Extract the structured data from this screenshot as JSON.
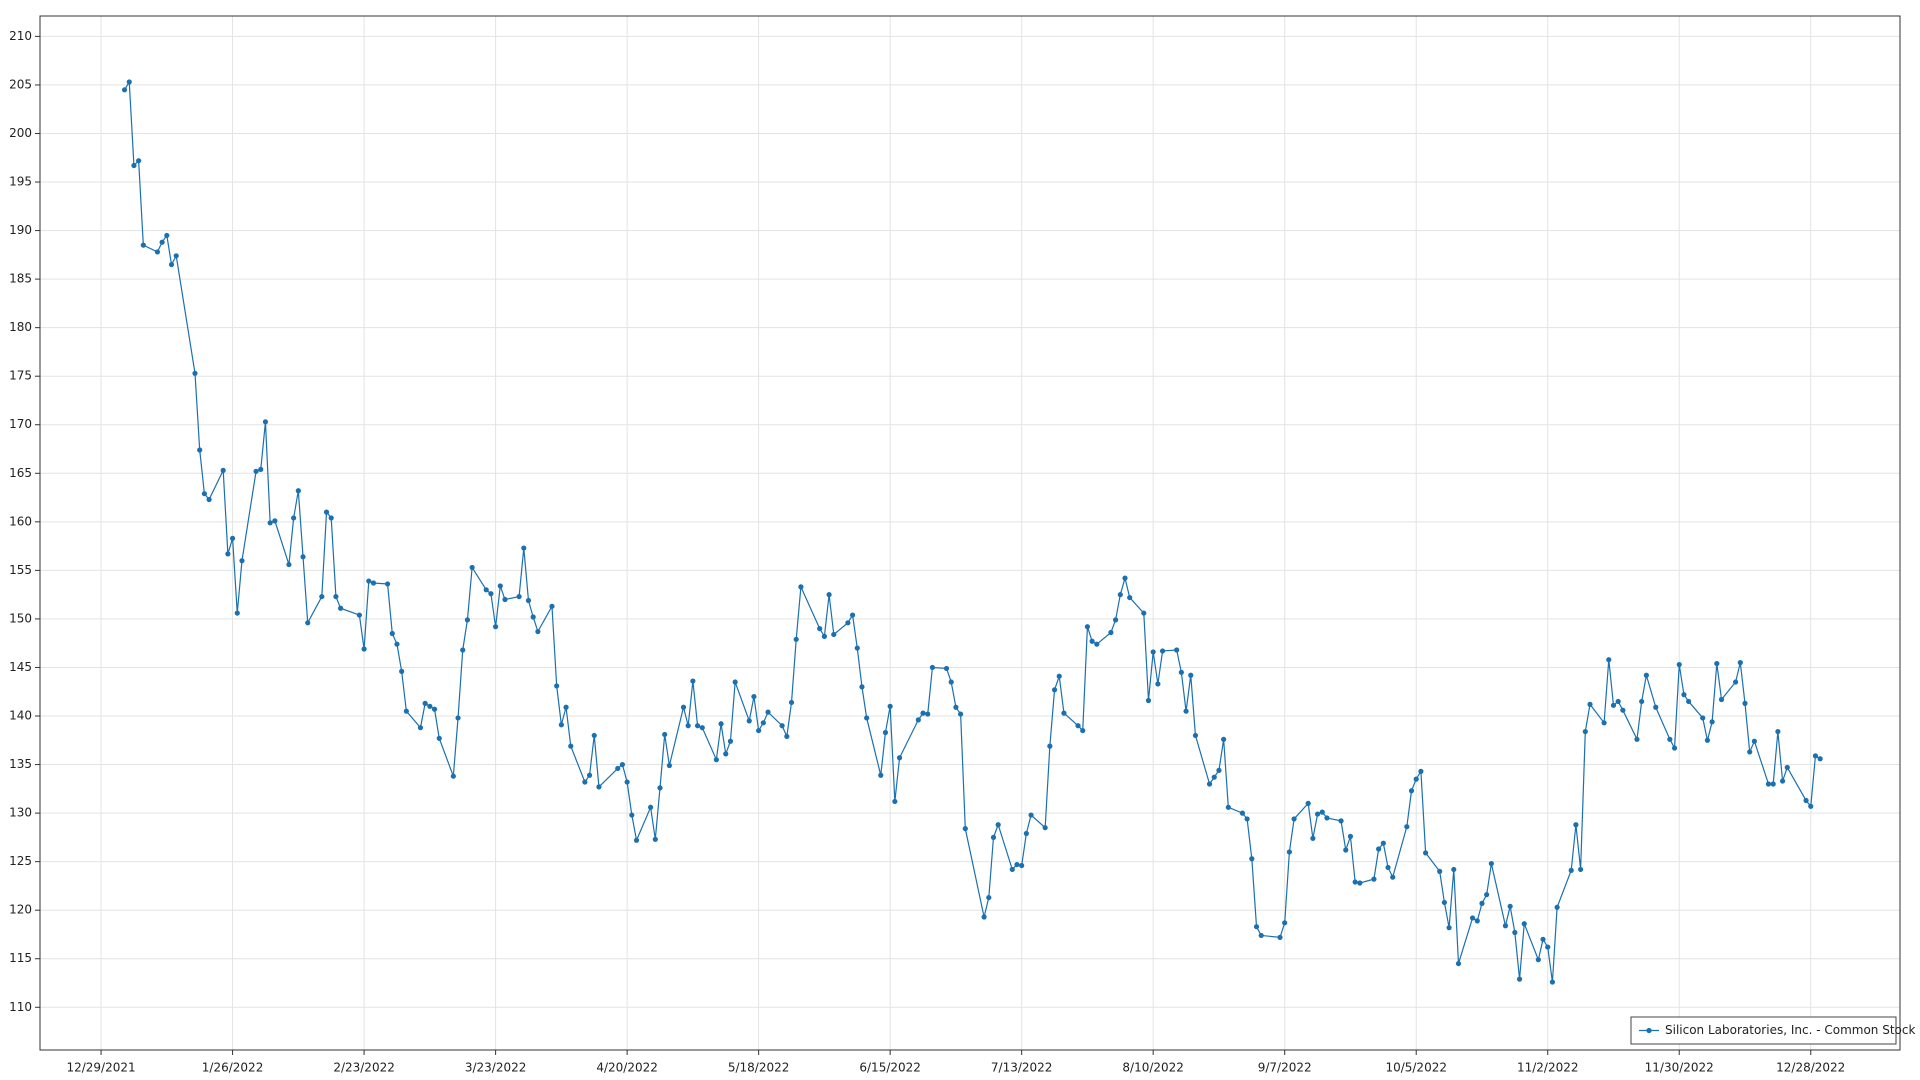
{
  "chart_data": {
    "type": "line",
    "x": [
      "1/3/2022",
      "1/4/2022",
      "1/5/2022",
      "1/6/2022",
      "1/7/2022",
      "1/10/2022",
      "1/11/2022",
      "1/12/2022",
      "1/13/2022",
      "1/14/2022",
      "1/18/2022",
      "1/19/2022",
      "1/20/2022",
      "1/21/2022",
      "1/24/2022",
      "1/25/2022",
      "1/26/2022",
      "1/27/2022",
      "1/28/2022",
      "1/31/2022",
      "2/1/2022",
      "2/2/2022",
      "2/3/2022",
      "2/4/2022",
      "2/7/2022",
      "2/8/2022",
      "2/9/2022",
      "2/10/2022",
      "2/11/2022",
      "2/14/2022",
      "2/15/2022",
      "2/16/2022",
      "2/17/2022",
      "2/18/2022",
      "2/22/2022",
      "2/23/2022",
      "2/24/2022",
      "2/25/2022",
      "2/28/2022",
      "3/1/2022",
      "3/2/2022",
      "3/3/2022",
      "3/4/2022",
      "3/7/2022",
      "3/8/2022",
      "3/9/2022",
      "3/10/2022",
      "3/11/2022",
      "3/14/2022",
      "3/15/2022",
      "3/16/2022",
      "3/17/2022",
      "3/18/2022",
      "3/21/2022",
      "3/22/2022",
      "3/23/2022",
      "3/24/2022",
      "3/25/2022",
      "3/28/2022",
      "3/29/2022",
      "3/30/2022",
      "3/31/2022",
      "4/1/2022",
      "4/4/2022",
      "4/5/2022",
      "4/6/2022",
      "4/7/2022",
      "4/8/2022",
      "4/11/2022",
      "4/12/2022",
      "4/13/2022",
      "4/14/2022",
      "4/18/2022",
      "4/19/2022",
      "4/20/2022",
      "4/21/2022",
      "4/22/2022",
      "4/25/2022",
      "4/26/2022",
      "4/27/2022",
      "4/28/2022",
      "4/29/2022",
      "5/2/2022",
      "5/3/2022",
      "5/4/2022",
      "5/5/2022",
      "5/6/2022",
      "5/9/2022",
      "5/10/2022",
      "5/11/2022",
      "5/12/2022",
      "5/13/2022",
      "5/16/2022",
      "5/17/2022",
      "5/18/2022",
      "5/19/2022",
      "5/20/2022",
      "5/23/2022",
      "5/24/2022",
      "5/25/2022",
      "5/26/2022",
      "5/27/2022",
      "5/31/2022",
      "6/1/2022",
      "6/2/2022",
      "6/3/2022",
      "6/6/2022",
      "6/7/2022",
      "6/8/2022",
      "6/9/2022",
      "6/10/2022",
      "6/13/2022",
      "6/14/2022",
      "6/15/2022",
      "6/16/2022",
      "6/17/2022",
      "6/21/2022",
      "6/22/2022",
      "6/23/2022",
      "6/24/2022",
      "6/27/2022",
      "6/28/2022",
      "6/29/2022",
      "6/30/2022",
      "7/1/2022",
      "7/5/2022",
      "7/6/2022",
      "7/7/2022",
      "7/8/2022",
      "7/11/2022",
      "7/12/2022",
      "7/13/2022",
      "7/14/2022",
      "7/15/2022",
      "7/18/2022",
      "7/19/2022",
      "7/20/2022",
      "7/21/2022",
      "7/22/2022",
      "7/25/2022",
      "7/26/2022",
      "7/27/2022",
      "7/28/2022",
      "7/29/2022",
      "8/1/2022",
      "8/2/2022",
      "8/3/2022",
      "8/4/2022",
      "8/5/2022",
      "8/8/2022",
      "8/9/2022",
      "8/10/2022",
      "8/11/2022",
      "8/12/2022",
      "8/15/2022",
      "8/16/2022",
      "8/17/2022",
      "8/18/2022",
      "8/19/2022",
      "8/22/2022",
      "8/23/2022",
      "8/24/2022",
      "8/25/2022",
      "8/26/2022",
      "8/29/2022",
      "8/30/2022",
      "8/31/2022",
      "9/1/2022",
      "9/2/2022",
      "9/6/2022",
      "9/7/2022",
      "9/8/2022",
      "9/9/2022",
      "9/12/2022",
      "9/13/2022",
      "9/14/2022",
      "9/15/2022",
      "9/16/2022",
      "9/19/2022",
      "9/20/2022",
      "9/21/2022",
      "9/22/2022",
      "9/23/2022",
      "9/26/2022",
      "9/27/2022",
      "9/28/2022",
      "9/29/2022",
      "9/30/2022",
      "10/3/2022",
      "10/4/2022",
      "10/5/2022",
      "10/6/2022",
      "10/7/2022",
      "10/10/2022",
      "10/11/2022",
      "10/12/2022",
      "10/13/2022",
      "10/14/2022",
      "10/17/2022",
      "10/18/2022",
      "10/19/2022",
      "10/20/2022",
      "10/21/2022",
      "10/24/2022",
      "10/25/2022",
      "10/26/2022",
      "10/27/2022",
      "10/28/2022",
      "10/31/2022",
      "11/1/2022",
      "11/2/2022",
      "11/3/2022",
      "11/4/2022",
      "11/7/2022",
      "11/8/2022",
      "11/9/2022",
      "11/10/2022",
      "11/11/2022",
      "11/14/2022",
      "11/15/2022",
      "11/16/2022",
      "11/17/2022",
      "11/18/2022",
      "11/21/2022",
      "11/22/2022",
      "11/23/2022",
      "11/25/2022",
      "11/28/2022",
      "11/29/2022",
      "11/30/2022",
      "12/1/2022",
      "12/2/2022",
      "12/5/2022",
      "12/6/2022",
      "12/7/2022",
      "12/8/2022",
      "12/9/2022",
      "12/12/2022",
      "12/13/2022",
      "12/14/2022",
      "12/15/2022",
      "12/16/2022",
      "12/19/2022",
      "12/20/2022",
      "12/21/2022",
      "12/22/2022",
      "12/23/2022",
      "12/27/2022",
      "12/28/2022",
      "12/29/2022",
      "12/30/2022"
    ],
    "series": [
      {
        "name": "Silicon Laboratories, Inc. - Common Stock",
        "color": "#1b70b0",
        "values": [
          204.5,
          205.3,
          196.7,
          197.2,
          188.5,
          187.8,
          188.8,
          189.5,
          186.5,
          187.4,
          175.3,
          167.4,
          162.9,
          162.3,
          165.3,
          156.7,
          158.3,
          150.6,
          156.0,
          165.2,
          165.4,
          170.3,
          159.9,
          160.1,
          155.6,
          160.4,
          163.2,
          156.4,
          149.6,
          152.3,
          161.0,
          160.4,
          152.3,
          151.1,
          150.4,
          146.9,
          153.9,
          153.7,
          153.6,
          148.5,
          147.4,
          144.6,
          140.5,
          138.8,
          141.3,
          141.0,
          140.7,
          137.7,
          133.8,
          139.8,
          146.8,
          149.9,
          155.3,
          153.0,
          152.6,
          149.2,
          153.4,
          152.0,
          152.3,
          157.3,
          151.9,
          150.2,
          148.7,
          151.3,
          143.1,
          139.1,
          140.9,
          136.9,
          133.2,
          133.9,
          138.0,
          132.7,
          134.6,
          135.0,
          133.2,
          129.8,
          127.2,
          130.6,
          127.3,
          132.6,
          138.1,
          134.9,
          140.9,
          139.0,
          143.6,
          139.0,
          138.8,
          135.5,
          139.2,
          136.1,
          137.4,
          143.5,
          139.5,
          142.0,
          138.5,
          139.3,
          140.4,
          139.0,
          137.9,
          141.4,
          147.9,
          153.3,
          149.0,
          148.2,
          152.5,
          148.4,
          149.6,
          150.4,
          147.0,
          143.0,
          139.8,
          133.9,
          138.3,
          141.0,
          131.2,
          135.7,
          139.6,
          140.3,
          140.2,
          145.0,
          144.9,
          143.5,
          140.9,
          140.2,
          128.4,
          119.3,
          121.3,
          127.5,
          128.8,
          124.2,
          124.7,
          124.6,
          127.9,
          129.8,
          128.5,
          136.9,
          142.7,
          144.1,
          140.3,
          139.0,
          138.5,
          149.2,
          147.7,
          147.4,
          148.6,
          149.9,
          152.5,
          154.2,
          152.2,
          150.6,
          141.6,
          146.6,
          143.3,
          146.7,
          146.8,
          144.5,
          140.5,
          144.2,
          138.0,
          133.0,
          133.7,
          134.4,
          137.6,
          130.6,
          130.0,
          129.4,
          125.3,
          118.3,
          117.4,
          117.2,
          118.7,
          126.0,
          129.4,
          131.0,
          127.4,
          129.9,
          130.1,
          129.5,
          129.2,
          126.2,
          127.6,
          122.9,
          122.8,
          123.2,
          126.3,
          126.9,
          124.4,
          123.4,
          128.6,
          132.3,
          133.5,
          134.3,
          125.9,
          124.0,
          120.8,
          118.2,
          124.2,
          114.5,
          119.2,
          118.9,
          120.7,
          121.6,
          124.8,
          118.4,
          120.4,
          117.7,
          112.9,
          118.6,
          114.9,
          117.0,
          116.2,
          112.6,
          120.3,
          124.1,
          128.8,
          124.2,
          138.4,
          141.2,
          139.3,
          145.8,
          141.1,
          141.5,
          140.6,
          137.6,
          141.5,
          144.2,
          140.9,
          137.6,
          136.7,
          145.3,
          142.2,
          141.5,
          139.8,
          137.5,
          139.4,
          145.4,
          141.7,
          143.5,
          145.5,
          141.3,
          136.3,
          137.4,
          133.0,
          133.0,
          138.4,
          133.3,
          134.7,
          131.3,
          130.7,
          135.9,
          135.6
        ]
      }
    ],
    "xlim": [
      "12/16/2021",
      "1/16/2023"
    ],
    "xticks": [
      "12/29/2021",
      "1/26/2022",
      "2/23/2022",
      "3/23/2022",
      "4/20/2022",
      "5/18/2022",
      "6/15/2022",
      "7/13/2022",
      "8/10/2022",
      "9/7/2022",
      "10/5/2022",
      "11/2/2022",
      "11/30/2022",
      "12/28/2022"
    ],
    "ylim": [
      105.6,
      212.1
    ],
    "yticks": [
      110,
      115,
      120,
      125,
      130,
      135,
      140,
      145,
      150,
      155,
      160,
      165,
      170,
      175,
      180,
      185,
      190,
      195,
      200,
      205,
      210
    ],
    "grid": true,
    "legend": "lower right"
  }
}
